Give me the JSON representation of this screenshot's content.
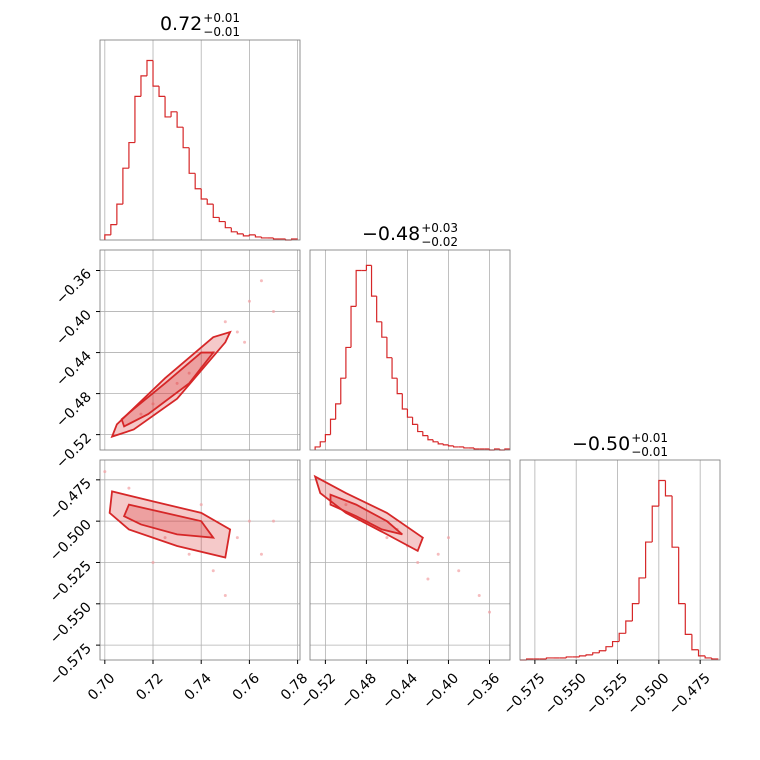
{
  "chart_data": {
    "type": "corner",
    "color": "#d62728",
    "point_color": "#f2a0a3",
    "fill_color": "#d62728",
    "grid": true,
    "parameters": [
      {
        "title_value": "0.72",
        "title_plus": "+0.01",
        "title_minus": "−0.01",
        "lim": [
          0.698,
          0.781
        ],
        "ticks": [
          {
            "value": 0.7,
            "label": "0.70"
          },
          {
            "value": 0.72,
            "label": "0.72"
          },
          {
            "value": 0.74,
            "label": "0.74"
          },
          {
            "value": 0.76,
            "label": "0.76"
          },
          {
            "value": 0.78,
            "label": "0.78"
          }
        ]
      },
      {
        "title_value": "−0.48",
        "title_plus": "+0.03",
        "title_minus": "−0.02",
        "lim": [
          -0.535,
          -0.34
        ],
        "ticks": [
          {
            "value": -0.52,
            "label": "−0.52"
          },
          {
            "value": -0.48,
            "label": "−0.48"
          },
          {
            "value": -0.44,
            "label": "−0.44"
          },
          {
            "value": -0.4,
            "label": "−0.40"
          },
          {
            "value": -0.36,
            "label": "−0.36"
          }
        ]
      },
      {
        "title_value": "−0.50",
        "title_plus": "+0.01",
        "title_minus": "−0.01",
        "lim": [
          -0.584,
          -0.463
        ],
        "ticks": [
          {
            "value": -0.575,
            "label": "−0.575"
          },
          {
            "value": -0.55,
            "label": "−0.550"
          },
          {
            "value": -0.525,
            "label": "−0.525"
          },
          {
            "value": -0.5,
            "label": "−0.500"
          },
          {
            "value": -0.475,
            "label": "−0.475"
          }
        ]
      }
    ],
    "panels": [
      {
        "type": "histogram",
        "x_param": 0,
        "ylim": [
          0,
          195
        ],
        "bins": [
          0.7,
          0.7025,
          0.705,
          0.7075,
          0.71,
          0.7125,
          0.715,
          0.7175,
          0.72,
          0.7225,
          0.725,
          0.7275,
          0.73,
          0.7325,
          0.735,
          0.7375,
          0.74,
          0.7425,
          0.745,
          0.7475,
          0.75,
          0.7525,
          0.755,
          0.7575,
          0.76,
          0.7625,
          0.765,
          0.7675,
          0.77,
          0.7725,
          0.775,
          0.7775,
          0.78
        ],
        "counts": [
          5,
          15,
          35,
          70,
          95,
          140,
          160,
          175,
          150,
          140,
          120,
          125,
          110,
          90,
          65,
          50,
          40,
          35,
          22,
          18,
          12,
          8,
          6,
          4,
          5,
          3,
          2,
          2,
          1,
          1,
          0,
          1
        ]
      },
      {
        "type": "histogram",
        "x_param": 1,
        "ylim": [
          0,
          195
        ],
        "bins": [
          -0.53,
          -0.525,
          -0.52,
          -0.515,
          -0.51,
          -0.505,
          -0.5,
          -0.495,
          -0.49,
          -0.485,
          -0.48,
          -0.475,
          -0.47,
          -0.465,
          -0.46,
          -0.455,
          -0.45,
          -0.445,
          -0.44,
          -0.435,
          -0.43,
          -0.425,
          -0.42,
          -0.415,
          -0.41,
          -0.405,
          -0.4,
          -0.395,
          -0.39,
          -0.385,
          -0.38,
          -0.375,
          -0.37,
          -0.365,
          -0.36,
          -0.355,
          -0.35,
          -0.345,
          -0.34
        ],
        "counts": [
          3,
          8,
          15,
          30,
          45,
          70,
          100,
          140,
          175,
          175,
          180,
          150,
          125,
          110,
          90,
          70,
          55,
          40,
          32,
          25,
          18,
          14,
          10,
          8,
          6,
          5,
          4,
          3,
          3,
          2,
          2,
          1,
          1,
          1,
          0,
          1,
          0,
          1
        ]
      },
      {
        "type": "histogram",
        "x_param": 2,
        "ylim": [
          0,
          195
        ],
        "bins": [
          -0.584,
          -0.58,
          -0.576,
          -0.572,
          -0.568,
          -0.564,
          -0.56,
          -0.556,
          -0.552,
          -0.548,
          -0.544,
          -0.54,
          -0.536,
          -0.532,
          -0.528,
          -0.524,
          -0.52,
          -0.516,
          -0.512,
          -0.508,
          -0.504,
          -0.5,
          -0.496,
          -0.492,
          -0.488,
          -0.484,
          -0.48,
          -0.476,
          -0.472,
          -0.468,
          -0.464
        ],
        "counts": [
          0,
          1,
          1,
          1,
          2,
          2,
          2,
          3,
          3,
          4,
          5,
          7,
          9,
          13,
          18,
          26,
          38,
          55,
          80,
          115,
          150,
          175,
          160,
          110,
          55,
          25,
          10,
          4,
          2,
          1
        ]
      },
      {
        "type": "scatter",
        "x_param": 0,
        "y_param": 1,
        "x": [
          0.73,
          0.745,
          0.755,
          0.76,
          0.74,
          0.72,
          0.765,
          0.75,
          0.735,
          0.77,
          0.715,
          0.758
        ],
        "y": [
          -0.47,
          -0.44,
          -0.42,
          -0.39,
          -0.455,
          -0.49,
          -0.37,
          -0.41,
          -0.46,
          -0.4,
          -0.5,
          -0.43
        ],
        "contours": [
          {
            "x": [
              0.703,
              0.712,
              0.73,
              0.75,
              0.752,
              0.745,
              0.725,
              0.705
            ],
            "y": [
              -0.522,
              -0.515,
              -0.485,
              -0.43,
              -0.42,
              -0.425,
              -0.465,
              -0.51
            ]
          },
          {
            "x": [
              0.708,
              0.718,
              0.735,
              0.745,
              0.74,
              0.725,
              0.712,
              0.707
            ],
            "y": [
              -0.512,
              -0.5,
              -0.47,
              -0.44,
              -0.44,
              -0.47,
              -0.495,
              -0.505
            ]
          }
        ]
      },
      {
        "type": "scatter",
        "x_param": 0,
        "y_param": 2,
        "x": [
          0.725,
          0.745,
          0.76,
          0.75,
          0.735,
          0.71,
          0.765,
          0.74,
          0.755,
          0.72,
          0.7,
          0.77
        ],
        "y": [
          -0.51,
          -0.53,
          -0.5,
          -0.545,
          -0.52,
          -0.48,
          -0.52,
          -0.49,
          -0.51,
          -0.525,
          -0.47,
          -0.5
        ],
        "contours": [
          {
            "x": [
              0.703,
              0.72,
              0.74,
              0.752,
              0.75,
              0.73,
              0.71,
              0.702
            ],
            "y": [
              -0.482,
              -0.488,
              -0.495,
              -0.505,
              -0.522,
              -0.515,
              -0.505,
              -0.495
            ]
          },
          {
            "x": [
              0.71,
              0.725,
              0.74,
              0.745,
              0.73,
              0.715,
              0.708
            ],
            "y": [
              -0.49,
              -0.495,
              -0.5,
              -0.51,
              -0.508,
              -0.502,
              -0.497
            ]
          }
        ]
      },
      {
        "type": "scatter",
        "x_param": 1,
        "y_param": 2,
        "x": [
          -0.44,
          -0.41,
          -0.39,
          -0.42,
          -0.46,
          -0.5,
          -0.37,
          -0.43,
          -0.45,
          -0.4,
          -0.36,
          -0.48
        ],
        "y": [
          -0.515,
          -0.52,
          -0.53,
          -0.535,
          -0.51,
          -0.49,
          -0.545,
          -0.525,
          -0.505,
          -0.51,
          -0.555,
          -0.5
        ],
        "contours": [
          {
            "x": [
              -0.53,
              -0.5,
              -0.46,
              -0.425,
              -0.43,
              -0.46,
              -0.5,
              -0.525
            ],
            "y": [
              -0.473,
              -0.483,
              -0.495,
              -0.51,
              -0.518,
              -0.508,
              -0.495,
              -0.483
            ]
          },
          {
            "x": [
              -0.515,
              -0.49,
              -0.46,
              -0.445,
              -0.465,
              -0.49,
              -0.515
            ],
            "y": [
              -0.484,
              -0.49,
              -0.5,
              -0.508,
              -0.505,
              -0.497,
              -0.49
            ]
          }
        ]
      }
    ]
  }
}
